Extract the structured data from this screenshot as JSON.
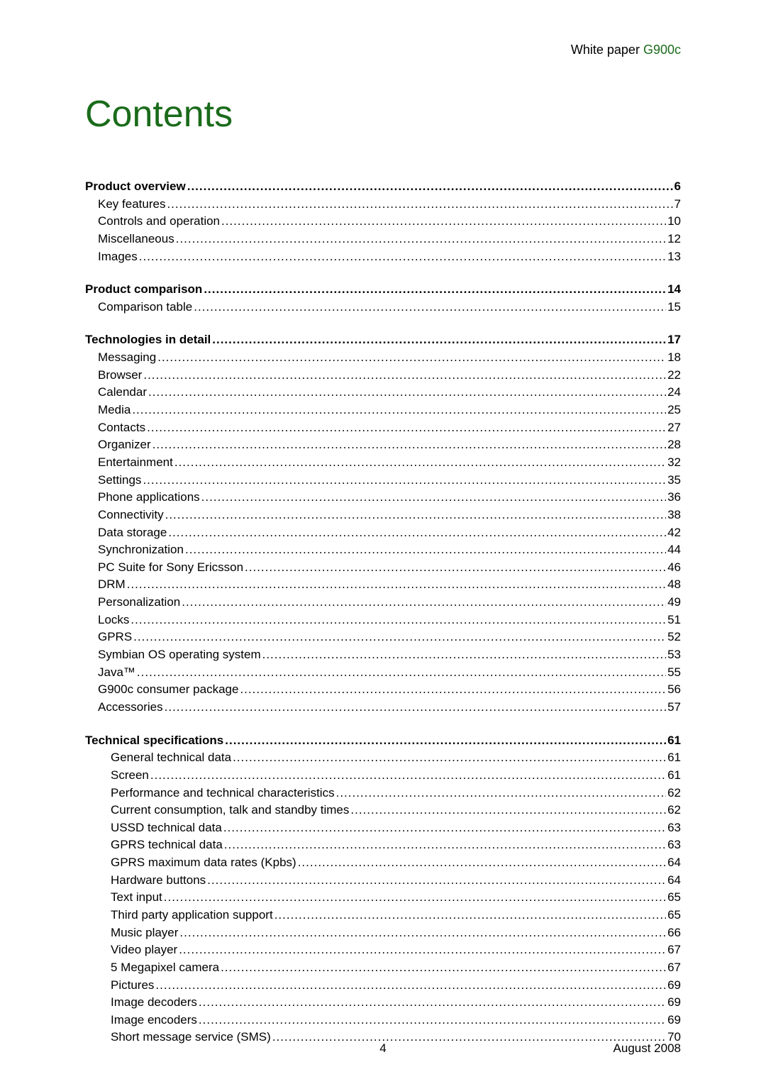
{
  "header": {
    "prefix": "White paper ",
    "model": "G900c"
  },
  "title": "Contents",
  "colors": {
    "accent": "#1a6b1a",
    "text": "#000000",
    "background": "#ffffff"
  },
  "typography": {
    "title_fontsize": 52,
    "body_fontsize": 17,
    "font_family": "Arial"
  },
  "toc": [
    {
      "heading": {
        "label": "Product overview",
        "page": "6"
      },
      "items": [
        {
          "label": "Key features",
          "page": "7",
          "indent": 1
        },
        {
          "label": "Controls and operation",
          "page": "10",
          "indent": 1
        },
        {
          "label": "Miscellaneous",
          "page": "12",
          "indent": 1
        },
        {
          "label": "Images",
          "page": "13",
          "indent": 1
        }
      ]
    },
    {
      "heading": {
        "label": "Product comparison",
        "page": "14"
      },
      "items": [
        {
          "label": "Comparison table",
          "page": "15",
          "indent": 1
        }
      ]
    },
    {
      "heading": {
        "label": "Technologies in detail",
        "page": "17"
      },
      "items": [
        {
          "label": "Messaging",
          "page": "18",
          "indent": 1
        },
        {
          "label": "Browser",
          "page": "22",
          "indent": 1
        },
        {
          "label": "Calendar",
          "page": "24",
          "indent": 1
        },
        {
          "label": "Media",
          "page": "25",
          "indent": 1
        },
        {
          "label": "Contacts",
          "page": "27",
          "indent": 1
        },
        {
          "label": "Organizer",
          "page": "28",
          "indent": 1
        },
        {
          "label": "Entertainment",
          "page": "32",
          "indent": 1
        },
        {
          "label": "Settings",
          "page": "35",
          "indent": 1
        },
        {
          "label": "Phone applications",
          "page": "36",
          "indent": 1
        },
        {
          "label": "Connectivity",
          "page": "38",
          "indent": 1
        },
        {
          "label": "Data storage",
          "page": "42",
          "indent": 1
        },
        {
          "label": "Synchronization",
          "page": "44",
          "indent": 1
        },
        {
          "label": "PC Suite for Sony Ericsson",
          "page": "46",
          "indent": 1
        },
        {
          "label": "DRM",
          "page": "48",
          "indent": 1
        },
        {
          "label": "Personalization",
          "page": "49",
          "indent": 1
        },
        {
          "label": "Locks",
          "page": "51",
          "indent": 1
        },
        {
          "label": "GPRS",
          "page": "52",
          "indent": 1
        },
        {
          "label": "Symbian OS operating system",
          "page": "53",
          "indent": 1
        },
        {
          "label": "Java™",
          "page": "55",
          "indent": 1
        },
        {
          "label": "G900c consumer package",
          "page": "56",
          "indent": 1
        },
        {
          "label": "Accessories",
          "page": "57",
          "indent": 1
        }
      ]
    },
    {
      "heading": {
        "label": "Technical specifications",
        "page": "61"
      },
      "items": [
        {
          "label": "General technical data",
          "page": "61",
          "indent": 2
        },
        {
          "label": "Screen",
          "page": "61",
          "indent": 2
        },
        {
          "label": "Performance and technical characteristics",
          "page": "62",
          "indent": 2
        },
        {
          "label": "Current consumption, talk and standby times",
          "page": "62",
          "indent": 2
        },
        {
          "label": "USSD technical data",
          "page": "63",
          "indent": 2
        },
        {
          "label": "GPRS technical data",
          "page": "63",
          "indent": 2
        },
        {
          "label": "GPRS maximum data rates (Kpbs)",
          "page": "64",
          "indent": 2
        },
        {
          "label": "Hardware buttons",
          "page": "64",
          "indent": 2
        },
        {
          "label": "Text input",
          "page": "65",
          "indent": 2
        },
        {
          "label": "Third party application support",
          "page": "65",
          "indent": 2
        },
        {
          "label": "Music player",
          "page": "66",
          "indent": 2
        },
        {
          "label": "Video player",
          "page": "67",
          "indent": 2
        },
        {
          "label": "5 Megapixel camera",
          "page": "67",
          "indent": 2
        },
        {
          "label": "Pictures",
          "page": "69",
          "indent": 2
        },
        {
          "label": "Image decoders",
          "page": "69",
          "indent": 2
        },
        {
          "label": "Image encoders",
          "page": "69",
          "indent": 2
        },
        {
          "label": "Short message service (SMS)",
          "page": "70",
          "indent": 2
        }
      ]
    }
  ],
  "footer": {
    "page_number": "4",
    "date": "August 2008"
  }
}
